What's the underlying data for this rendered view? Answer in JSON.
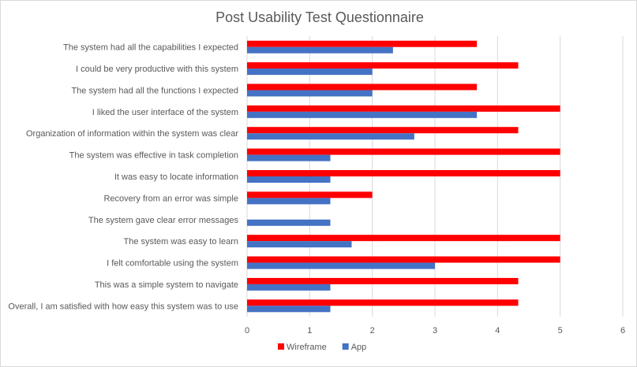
{
  "chart_data": {
    "type": "bar",
    "orientation": "horizontal",
    "title": "Post Usability Test Questionnaire",
    "xlabel": "",
    "ylabel": "",
    "xlim": [
      0,
      6
    ],
    "xticks": [
      "0",
      "1",
      "2",
      "3",
      "4",
      "5",
      "6"
    ],
    "grid": "vertical",
    "legend_position": "bottom",
    "categories": [
      "The system had all the capabilities I expected",
      "I could be very productive with this system",
      "The system had all the functions I expected",
      "I liked the user interface of the system",
      "Organization of information within the system was clear",
      "The system was effective in task completion",
      "It was easy to locate information",
      "Recovery from an error was simple",
      "The system gave clear error messages",
      "The system was easy to learn",
      "I felt comfortable using the system",
      "This was a simple system to navigate",
      "Overall, I am satisfied with how easy this system was to use"
    ],
    "series": [
      {
        "name": "Wireframe",
        "color": "#ff0000",
        "values": [
          3.67,
          4.33,
          3.67,
          5,
          4.33,
          5,
          5,
          2,
          0,
          5,
          5,
          4.33,
          4.33
        ]
      },
      {
        "name": "App",
        "color": "#4472c4",
        "values": [
          2.33,
          2,
          2,
          3.67,
          2.67,
          1.33,
          1.33,
          1.33,
          1.33,
          1.67,
          3,
          1.33,
          1.33
        ]
      }
    ]
  }
}
